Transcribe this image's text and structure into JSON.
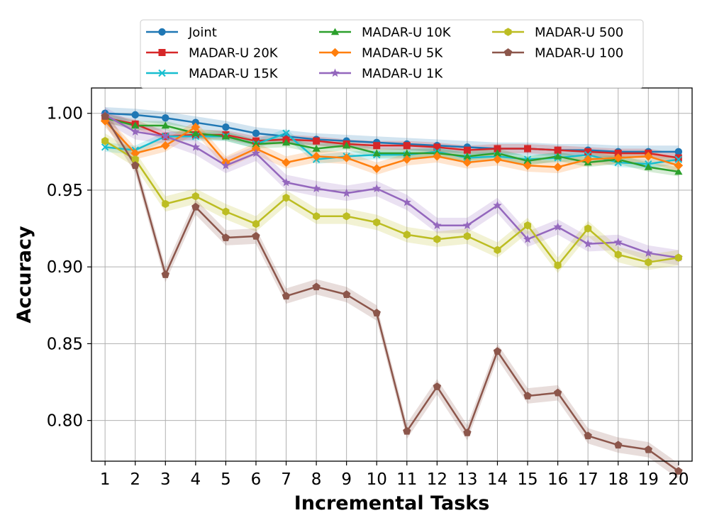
{
  "chart_data": {
    "type": "line",
    "title": "",
    "xlabel": "Incremental Tasks",
    "ylabel": "Accuracy",
    "x": [
      1,
      2,
      3,
      4,
      5,
      6,
      7,
      8,
      9,
      10,
      11,
      12,
      13,
      14,
      15,
      16,
      17,
      18,
      19,
      20
    ],
    "ylim": [
      0.7735,
      1.0165
    ],
    "yticks": [
      0.8,
      0.85,
      0.9,
      0.95,
      1.0
    ],
    "ytick_labels": [
      "0.80",
      "0.85",
      "0.90",
      "0.95",
      "1.00"
    ],
    "grid": true,
    "legend_position": "top-center",
    "series": [
      {
        "name": "Joint",
        "color": "#1f77b4",
        "marker": "circle",
        "band": 0.004,
        "values": [
          1.0,
          0.999,
          0.997,
          0.994,
          0.991,
          0.987,
          0.985,
          0.983,
          0.982,
          0.981,
          0.98,
          0.979,
          0.978,
          0.977,
          0.977,
          0.976,
          0.976,
          0.975,
          0.975,
          0.975
        ]
      },
      {
        "name": "MADAR-U 20K",
        "color": "#d62728",
        "marker": "square",
        "band": 0.003,
        "values": [
          0.997,
          0.993,
          0.985,
          0.986,
          0.986,
          0.982,
          0.983,
          0.982,
          0.98,
          0.979,
          0.979,
          0.978,
          0.976,
          0.977,
          0.977,
          0.976,
          0.975,
          0.974,
          0.974,
          0.971
        ]
      },
      {
        "name": "MADAR-U 15K",
        "color": "#17becf",
        "marker": "x",
        "band": 0.003,
        "values": [
          0.978,
          0.976,
          0.985,
          0.985,
          0.985,
          0.98,
          0.987,
          0.97,
          0.972,
          0.973,
          0.973,
          0.975,
          0.971,
          0.972,
          0.97,
          0.971,
          0.973,
          0.968,
          0.967,
          0.97
        ]
      },
      {
        "name": "MADAR-U 10K",
        "color": "#2ca02c",
        "marker": "triangle",
        "band": 0.003,
        "values": [
          0.997,
          0.992,
          0.992,
          0.987,
          0.985,
          0.98,
          0.981,
          0.977,
          0.979,
          0.974,
          0.974,
          0.974,
          0.972,
          0.974,
          0.969,
          0.972,
          0.968,
          0.97,
          0.965,
          0.962
        ]
      },
      {
        "name": "MADAR-U 5K",
        "color": "#ff7f0e",
        "marker": "diamond",
        "band": 0.004,
        "values": [
          0.995,
          0.974,
          0.979,
          0.991,
          0.968,
          0.977,
          0.968,
          0.972,
          0.971,
          0.964,
          0.97,
          0.972,
          0.968,
          0.97,
          0.966,
          0.965,
          0.97,
          0.971,
          0.972,
          0.966
        ]
      },
      {
        "name": "MADAR-U 1K",
        "color": "#9467bd",
        "marker": "star",
        "band": 0.005,
        "values": [
          0.999,
          0.988,
          0.985,
          0.978,
          0.966,
          0.974,
          0.955,
          0.951,
          0.948,
          0.951,
          0.942,
          0.927,
          0.927,
          0.94,
          0.918,
          0.926,
          0.915,
          0.916,
          0.909,
          0.906
        ]
      },
      {
        "name": "MADAR-U 500",
        "color": "#bcbd22",
        "marker": "hexagon",
        "band": 0.005,
        "values": [
          0.982,
          0.97,
          0.941,
          0.946,
          0.936,
          0.928,
          0.945,
          0.933,
          0.933,
          0.929,
          0.921,
          0.918,
          0.92,
          0.911,
          0.927,
          0.901,
          0.925,
          0.908,
          0.903,
          0.906
        ]
      },
      {
        "name": "MADAR-U 100",
        "color": "#8c564b",
        "marker": "pentagon",
        "band": 0.005,
        "values": [
          0.998,
          0.966,
          0.895,
          0.939,
          0.919,
          0.92,
          0.881,
          0.887,
          0.882,
          0.87,
          0.793,
          0.822,
          0.792,
          0.845,
          0.816,
          0.818,
          0.79,
          0.784,
          0.781,
          0.767
        ]
      }
    ]
  }
}
